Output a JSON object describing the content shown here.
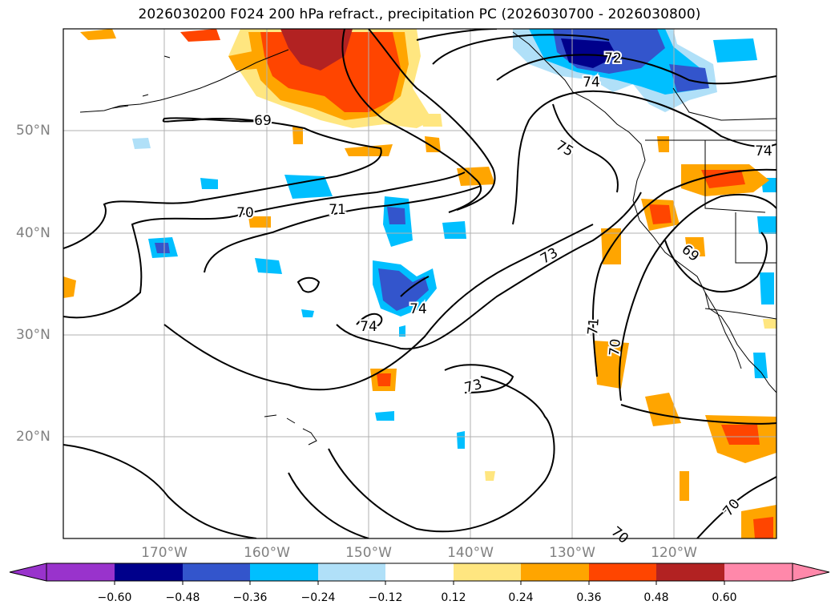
{
  "title": "2026030200 F024 200 hPa refract., precipitation PC (2026030700 - 2026030800)",
  "lat_labels": [
    "50°N",
    "40°N",
    "30°N",
    "20°N"
  ],
  "lon_labels": [
    "170°W",
    "160°W",
    "150°W",
    "140°W",
    "130°W",
    "120°W"
  ],
  "colorbar": {
    "tick_labels": [
      "−0.60",
      "−0.48",
      "−0.36",
      "−0.24",
      "−0.12",
      "0.12",
      "0.24",
      "0.36",
      "0.48",
      "0.60"
    ],
    "bin_colors": [
      "#9933cc",
      "#00008b",
      "#3355cc",
      "#00bfff",
      "#b0e0f8",
      "#ffffff",
      "#ffe680",
      "#ffa500",
      "#ff4500",
      "#b22222",
      "#ff88aa"
    ]
  },
  "contour_labels": [
    "69",
    "70",
    "71",
    "72",
    "74",
    "75",
    "74",
    "73",
    "74",
    "74",
    "73",
    "71",
    "70",
    "69",
    "70",
    "70"
  ],
  "colors": {
    "ocean": "#ffffff",
    "grid": "#b0b0b0",
    "contour": "#000000"
  }
}
